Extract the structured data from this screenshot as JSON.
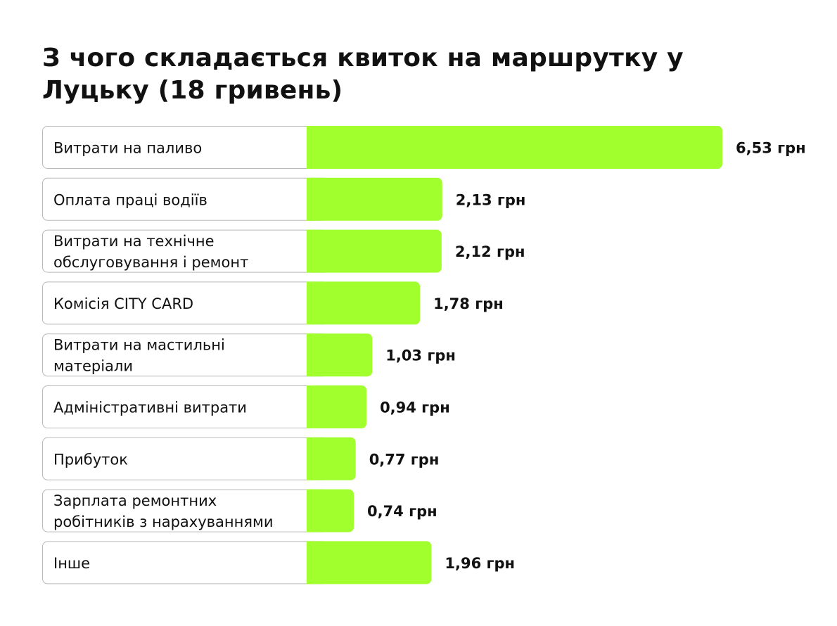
{
  "chart_data": {
    "type": "bar",
    "orientation": "horizontal",
    "title": "З чого складається квиток на маршрутку у Луцьку (18 гривень)",
    "categories": [
      "Витрати на паливо",
      "Оплата праці водіїв",
      "Витрати на технічне обслуговування і ремонт",
      "Комісія CITY CARD",
      "Витрати на мастильні матеріали",
      "Адміністративні витрати",
      "Прибуток",
      "Зарплата ремонтних робітників з нарахуваннями",
      "Інше"
    ],
    "category_lines": [
      [
        "Витрати на паливо"
      ],
      [
        "Оплата праці водіїв"
      ],
      [
        "Витрати на технічне",
        "обслуговування і ремонт"
      ],
      [
        "Комісія CITY CARD"
      ],
      [
        "Витрати на мастильні",
        "матеріали"
      ],
      [
        "Адміністративні витрати"
      ],
      [
        "Прибуток"
      ],
      [
        "Зарплата ремонтних",
        "робітників з нарахуваннями"
      ],
      [
        "Інше"
      ]
    ],
    "values": [
      6.53,
      2.13,
      2.12,
      1.78,
      1.03,
      0.94,
      0.77,
      0.74,
      1.96
    ],
    "value_labels": [
      "6,53 грн",
      "2,13 грн",
      "2,12 грн",
      "1,78 грн",
      "1,03 грн",
      "0,94 грн",
      "0,77 грн",
      "0,74 грн",
      "1,96 грн"
    ],
    "xlim": [
      0,
      6.53
    ],
    "grid": false,
    "legend": "none",
    "colors": {
      "bar": "#a0ff2c",
      "box_border": "#b9b9b9",
      "text": "#111111",
      "background": "#ffffff"
    }
  }
}
